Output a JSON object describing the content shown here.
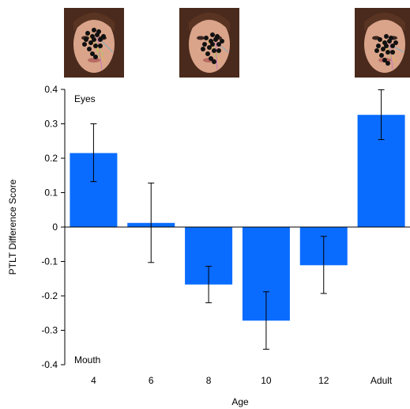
{
  "thumbnails": [
    {
      "icon": "face-eye-tracking-heatmap-icon",
      "category": "4"
    },
    {
      "icon": "face-eye-tracking-heatmap-icon",
      "category": "8"
    },
    {
      "icon": "face-eye-tracking-heatmap-icon",
      "category": "Adult"
    }
  ],
  "chart_data": {
    "type": "bar",
    "categories": [
      "4",
      "6",
      "8",
      "10",
      "12",
      "Adult"
    ],
    "values": [
      0.215,
      0.012,
      -0.167,
      -0.272,
      -0.111,
      0.326
    ],
    "error_low": [
      0.132,
      -0.103,
      -0.22,
      -0.355,
      -0.193,
      0.254
    ],
    "error_high": [
      0.3,
      0.128,
      -0.114,
      -0.188,
      -0.027,
      0.399
    ],
    "xlabel": "Age",
    "ylabel": "PTLT Difference Score",
    "ylim": [
      -0.4,
      0.4
    ],
    "yticks": [
      "-0.4",
      "-0.3",
      "-0.2",
      "-0.1",
      "0",
      "0.1",
      "0.2",
      "0.3",
      "0.4"
    ],
    "annotations": {
      "top": "Eyes",
      "bottom": "Mouth"
    },
    "bar_color": "#0a6cff",
    "grid": false
  }
}
